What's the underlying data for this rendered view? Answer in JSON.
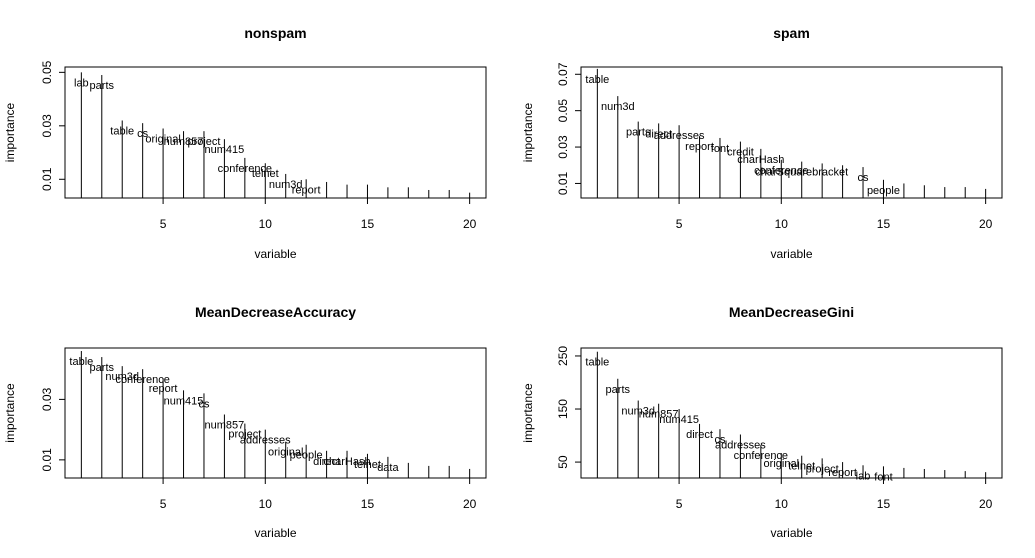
{
  "chart_data": [
    {
      "type": "bar",
      "title": "nonspam",
      "xlabel": "variable",
      "ylabel": "importance",
      "xlim": [
        0.2,
        20.8
      ],
      "ylim": [
        0.003,
        0.052
      ],
      "xticks": [
        "5",
        "10",
        "15",
        "20"
      ],
      "yticks": [
        "0.01",
        "0.03",
        "0.05"
      ],
      "x": [
        1,
        2,
        3,
        4,
        5,
        6,
        7,
        8,
        9,
        10,
        11,
        12,
        13,
        14,
        15,
        16,
        17,
        18,
        19,
        20
      ],
      "values": [
        0.05,
        0.049,
        0.032,
        0.031,
        0.029,
        0.028,
        0.028,
        0.025,
        0.018,
        0.016,
        0.012,
        0.01,
        0.009,
        0.008,
        0.008,
        0.007,
        0.007,
        0.006,
        0.006,
        0.005
      ],
      "labels": [
        "lab",
        "parts",
        "table",
        "cs",
        "original",
        "num857",
        "project",
        "num415",
        "conference",
        "telnet",
        "num3d",
        "report",
        "",
        "",
        "",
        "",
        "",
        "",
        "",
        ""
      ]
    },
    {
      "type": "bar",
      "title": "spam",
      "xlabel": "variable",
      "ylabel": "importance",
      "xlim": [
        0.2,
        20.8
      ],
      "ylim": [
        0.002,
        0.074
      ],
      "xticks": [
        "5",
        "10",
        "15",
        "20"
      ],
      "yticks": [
        "0.01",
        "0.03",
        "0.05",
        "0.07"
      ],
      "x": [
        1,
        2,
        3,
        4,
        5,
        6,
        7,
        8,
        9,
        10,
        11,
        12,
        13,
        14,
        15,
        16,
        17,
        18,
        19,
        20
      ],
      "values": [
        0.073,
        0.058,
        0.044,
        0.043,
        0.042,
        0.036,
        0.035,
        0.033,
        0.029,
        0.023,
        0.022,
        0.021,
        0.02,
        0.019,
        0.012,
        0.01,
        0.009,
        0.008,
        0.008,
        0.007
      ],
      "labels": [
        "table",
        "num3d",
        "parts",
        "direct",
        "addresses",
        "report",
        "font",
        "credit",
        "charHash",
        "conference",
        "charSquarebracket",
        "",
        "",
        "cs",
        "people",
        "",
        "",
        "",
        "",
        ""
      ]
    },
    {
      "type": "bar",
      "title": "MeanDecreaseAccuracy",
      "xlabel": "variable",
      "ylabel": "importance",
      "xlim": [
        0.2,
        20.8
      ],
      "ylim": [
        0.004,
        0.047
      ],
      "xticks": [
        "5",
        "10",
        "15",
        "20"
      ],
      "yticks": [
        "0.01",
        "0.03"
      ],
      "x": [
        1,
        2,
        3,
        4,
        5,
        6,
        7,
        8,
        9,
        10,
        11,
        12,
        13,
        14,
        15,
        16,
        17,
        18,
        19,
        20
      ],
      "values": [
        0.046,
        0.044,
        0.041,
        0.04,
        0.037,
        0.033,
        0.032,
        0.025,
        0.022,
        0.02,
        0.016,
        0.015,
        0.013,
        0.013,
        0.012,
        0.011,
        0.009,
        0.008,
        0.008,
        0.007
      ],
      "labels": [
        "table",
        "parts",
        "num3d",
        "conference",
        "report",
        "num415",
        "cs",
        "num857",
        "project",
        "addresses",
        "original",
        "people",
        "direct",
        "charHash",
        "telnet",
        "data",
        "",
        "",
        "",
        ""
      ]
    },
    {
      "type": "bar",
      "title": "MeanDecreaseGini",
      "xlabel": "variable",
      "ylabel": "importance",
      "xlim": [
        0.2,
        20.8
      ],
      "ylim": [
        20,
        265
      ],
      "xticks": [
        "5",
        "10",
        "15",
        "20"
      ],
      "yticks": [
        "50",
        "150",
        "250"
      ],
      "x": [
        1,
        2,
        3,
        4,
        5,
        6,
        7,
        8,
        9,
        10,
        11,
        12,
        13,
        14,
        15,
        16,
        17,
        18,
        19,
        20
      ],
      "values": [
        258,
        207,
        166,
        160,
        150,
        122,
        112,
        102,
        82,
        67,
        62,
        57,
        50,
        44,
        42,
        39,
        37,
        35,
        33,
        31
      ],
      "labels": [
        "table",
        "parts",
        "num3d",
        "num857",
        "num415",
        "direct",
        "cs",
        "addresses",
        "conference",
        "original",
        "telnet",
        "project",
        "report",
        "lab",
        "font",
        "",
        "",
        "",
        "",
        ""
      ]
    }
  ]
}
